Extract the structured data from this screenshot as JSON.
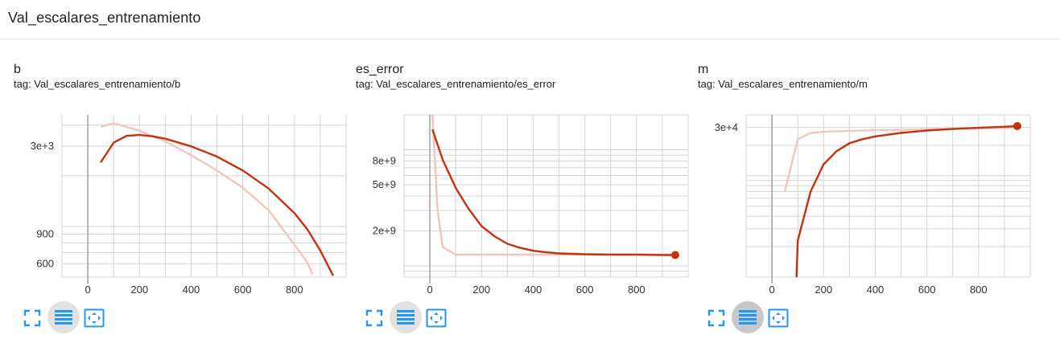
{
  "page": {
    "title": "Val_escalares_entrenamiento"
  },
  "colors": {
    "line": "#c2340e",
    "smoothed_raw": "#f2c6bb",
    "grid": "#d4d4d4",
    "axis": "#9e9e9e",
    "icon": "#2196f3"
  },
  "icons": {
    "fullscreen": "fullscreen-icon",
    "log_scale": "log-scale-icon",
    "fit_domain": "fit-domain-icon"
  },
  "cards": [
    {
      "title": "b",
      "tag": "tag: Val_escalares_entrenamiento/b",
      "log_scale_active": false
    },
    {
      "title": "es_error",
      "tag": "tag: Val_escalares_entrenamiento/es_error",
      "log_scale_active": false
    },
    {
      "title": "m",
      "tag": "tag: Val_escalares_entrenamiento/m",
      "log_scale_active": true
    }
  ],
  "chart_data": [
    {
      "type": "line",
      "title": "b",
      "yscale": "log",
      "xlim": [
        -100,
        1000
      ],
      "ylim": [
        500,
        4600
      ],
      "xticks": [
        0,
        200,
        400,
        600,
        800
      ],
      "xtick_labels": [
        "0",
        "200",
        "400",
        "600",
        "800"
      ],
      "yticks": [
        600,
        900,
        3000
      ],
      "ytick_labels": [
        "600",
        "900",
        "3e+3"
      ],
      "grid": true,
      "series": [
        {
          "role": "raw",
          "x": [
            50,
            100,
            150,
            200,
            250,
            300,
            400,
            500,
            600,
            700,
            800,
            850,
            870
          ],
          "y": [
            3900,
            4100,
            3900,
            3700,
            3450,
            3200,
            2650,
            2150,
            1700,
            1250,
            780,
            610,
            520
          ]
        },
        {
          "role": "smoothed",
          "x": [
            50,
            100,
            150,
            200,
            250,
            300,
            400,
            500,
            600,
            700,
            800,
            850,
            900,
            950
          ],
          "y": [
            2400,
            3150,
            3450,
            3500,
            3430,
            3320,
            2990,
            2600,
            2150,
            1680,
            1200,
            960,
            720,
            510
          ],
          "end_marker": false
        }
      ]
    },
    {
      "type": "line",
      "title": "es_error",
      "yscale": "log",
      "xlim": [
        -100,
        1000
      ],
      "ylim": [
        800000000,
        20000000000
      ],
      "xticks": [
        0,
        200,
        400,
        600,
        800
      ],
      "xtick_labels": [
        "0",
        "200",
        "400",
        "600",
        "800"
      ],
      "yticks": [
        2000000000,
        5000000000,
        8000000000
      ],
      "ytick_labels": [
        "2e+9",
        "5e+9",
        "8e+9"
      ],
      "grid": true,
      "series": [
        {
          "role": "raw",
          "x": [
            10,
            30,
            50,
            100,
            200,
            400,
            600,
            800,
            950
          ],
          "y": [
            20000000000,
            3000000000,
            1450000000,
            1250000000,
            1250000000,
            1250000000,
            1250000000,
            1250000000,
            1250000000
          ]
        },
        {
          "role": "smoothed",
          "x": [
            10,
            50,
            100,
            150,
            200,
            250,
            300,
            350,
            400,
            450,
            500,
            600,
            700,
            800,
            900,
            950
          ],
          "y": [
            15000000000,
            8200000000,
            4700000000,
            3100000000,
            2200000000,
            1800000000,
            1550000000,
            1430000000,
            1350000000,
            1310000000,
            1280000000,
            1260000000,
            1250000000,
            1250000000,
            1240000000,
            1240000000
          ],
          "end_marker": true
        }
      ]
    },
    {
      "type": "line",
      "title": "m",
      "yscale": "log",
      "xlim": [
        -100,
        1000
      ],
      "ylim": [
        1000,
        40000
      ],
      "xticks": [
        0,
        200,
        400,
        600,
        800
      ],
      "xtick_labels": [
        "0",
        "200",
        "400",
        "600",
        "800"
      ],
      "yticks": [
        30000
      ],
      "ytick_labels": [
        "3e+4"
      ],
      "grid": true,
      "series": [
        {
          "role": "raw",
          "x": [
            50,
            100,
            150,
            200,
            300,
            400,
            500,
            600,
            700,
            800,
            900,
            950
          ],
          "y": [
            7000,
            23000,
            26500,
            27200,
            27800,
            28200,
            28500,
            28800,
            29100,
            29400,
            29700,
            29900
          ]
        },
        {
          "role": "smoothed",
          "x": [
            95,
            100,
            150,
            200,
            250,
            300,
            350,
            400,
            500,
            600,
            700,
            800,
            900,
            950
          ],
          "y": [
            1000,
            2300,
            7000,
            13000,
            17500,
            21000,
            23000,
            24500,
            26500,
            28000,
            29000,
            29800,
            30500,
            31000
          ],
          "end_marker": true
        }
      ]
    }
  ]
}
